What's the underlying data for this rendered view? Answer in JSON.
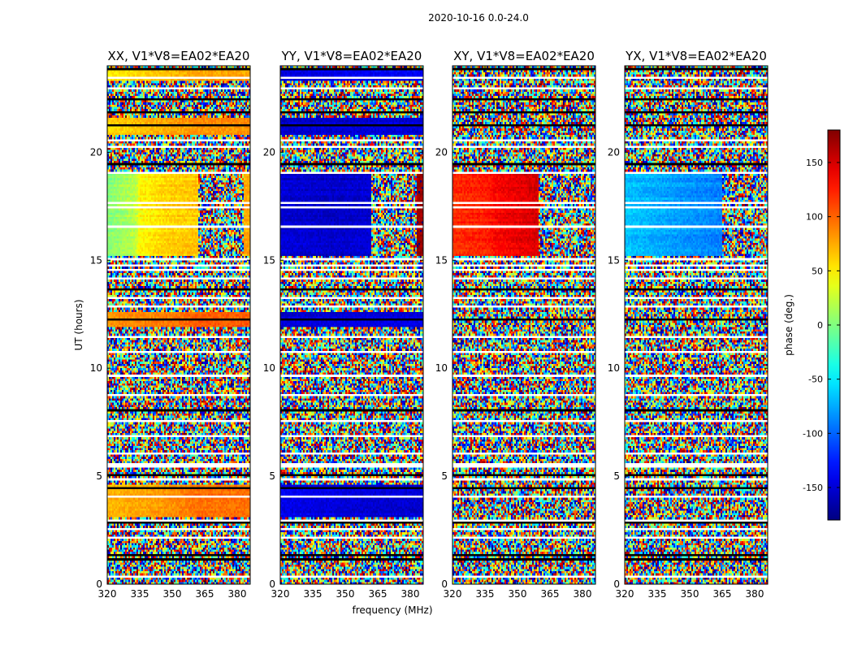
{
  "chart_data": {
    "type": "heatmap",
    "suptitle": "2020-10-16 0.0-24.0",
    "xlabel": "frequency (MHz)",
    "ylabel": "UT (hours)",
    "xlim": [
      320,
      386
    ],
    "ylim": [
      0,
      24
    ],
    "xticks": [
      320,
      335,
      350,
      365,
      380
    ],
    "yticks": [
      0,
      5,
      10,
      15,
      20
    ],
    "colorbar": {
      "label": "phase (deg.)",
      "range": [
        -180,
        180
      ],
      "ticks": [
        150,
        100,
        50,
        0,
        -50,
        -100,
        -150
      ],
      "colormap": "jet"
    },
    "flagged_ut_hours": [
      0.4,
      1.2,
      1.45,
      2.2,
      2.55,
      2.95,
      3.05,
      4.05,
      4.5,
      4.95,
      5.1,
      5.5,
      5.6,
      6.1,
      6.95,
      7.6,
      8.1,
      8.8,
      9.7,
      10.85,
      11.5,
      12.3,
      12.95,
      13.3,
      13.75,
      14.2,
      14.6,
      14.85,
      15.1,
      16.6,
      17.5,
      17.75,
      19.1,
      19.5,
      20.3,
      20.6,
      21.3,
      21.9,
      22.5,
      23.0,
      23.5,
      23.95
    ],
    "panels": [
      {
        "title": "XX, V1*V8=EA02*EA20",
        "noise_level": 1.0,
        "coherent_blocks": [
          {
            "ut": [
              15.2,
              19.0
            ],
            "freq_phase": [
              [
                320,
                0
              ],
              [
                333,
                20
              ],
              [
                335,
                45
              ],
              [
                348,
                60
              ],
              [
                362,
                65
              ],
              [
                365,
                null
              ],
              [
                382,
                null
              ],
              [
                383,
                75
              ],
              [
                386,
                75
              ]
            ]
          },
          {
            "ut": [
              20.8,
              21.6
            ],
            "freq_phase": [
              [
                320,
                60
              ],
              [
                345,
                75
              ],
              [
                362,
                85
              ]
            ]
          },
          {
            "ut": [
              11.9,
              12.6
            ],
            "freq_phase": [
              [
                320,
                85
              ],
              [
                350,
                95
              ],
              [
                362,
                105
              ]
            ]
          },
          {
            "ut": [
              3.1,
              4.6
            ],
            "freq_phase": [
              [
                320,
                70
              ],
              [
                345,
                80
              ],
              [
                362,
                95
              ]
            ]
          },
          {
            "ut": [
              23.3,
              23.8
            ],
            "freq_phase": [
              [
                320,
                50
              ],
              [
                345,
                65
              ],
              [
                362,
                75
              ]
            ]
          }
        ]
      },
      {
        "title": "YY, V1*V8=EA02*EA20",
        "noise_level": 1.0,
        "coherent_blocks": [
          {
            "ut": [
              15.2,
              19.0
            ],
            "freq_phase": [
              [
                320,
                -150
              ],
              [
                345,
                -155
              ],
              [
                362,
                -150
              ],
              [
                365,
                null
              ],
              [
                382,
                null
              ],
              [
                383,
                170
              ],
              [
                386,
                170
              ]
            ]
          },
          {
            "ut": [
              20.8,
              21.6
            ],
            "freq_phase": [
              [
                320,
                -155
              ],
              [
                362,
                -150
              ]
            ]
          },
          {
            "ut": [
              11.9,
              12.6
            ],
            "freq_phase": [
              [
                320,
                -150
              ],
              [
                362,
                -145
              ]
            ]
          },
          {
            "ut": [
              3.1,
              4.6
            ],
            "freq_phase": [
              [
                320,
                -140
              ],
              [
                362,
                -150
              ]
            ]
          },
          {
            "ut": [
              23.3,
              23.8
            ],
            "freq_phase": [
              [
                320,
                -150
              ],
              [
                362,
                -140
              ]
            ]
          }
        ]
      },
      {
        "title": "XY, V1*V8=EA02*EA20",
        "noise_level": 1.0,
        "coherent_blocks": [
          {
            "ut": [
              15.2,
              19.0
            ],
            "freq_phase": [
              [
                320,
                120
              ],
              [
                335,
                125
              ],
              [
                340,
                135
              ],
              [
                360,
                150
              ],
              [
                370,
                null
              ],
              [
                386,
                null
              ]
            ]
          }
        ]
      },
      {
        "title": "YX, V1*V8=EA02*EA20",
        "noise_level": 1.0,
        "coherent_blocks": [
          {
            "ut": [
              15.2,
              19.0
            ],
            "freq_phase": [
              [
                320,
                -65
              ],
              [
                345,
                -80
              ],
              [
                365,
                -90
              ],
              [
                372,
                null
              ],
              [
                386,
                null
              ]
            ]
          }
        ]
      }
    ]
  }
}
